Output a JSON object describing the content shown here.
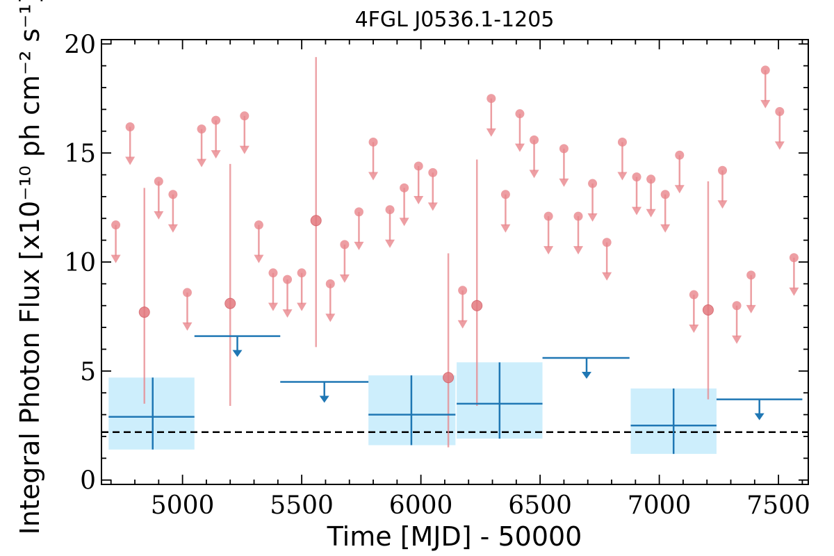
{
  "chart_data": {
    "type": "scatter",
    "title": "4FGL J0536.1-1205",
    "xlabel": "Time [MJD] - 50000",
    "ylabel": "Integral Photon Flux [x10⁻¹⁰ ph cm⁻² s⁻¹]",
    "xlim": [
      4660,
      7625
    ],
    "ylim": [
      -0.2,
      20.2
    ],
    "x_ticks": [
      5000,
      5500,
      6000,
      6500,
      7000,
      7500
    ],
    "y_ticks": [
      0,
      5,
      10,
      15,
      20
    ],
    "grid": false,
    "reference_line": {
      "y": 2.2,
      "style": "dashed",
      "color": "#000000"
    },
    "colors": {
      "monthly": "#e8868c",
      "yearly": "#1f77b4",
      "yearly_band": "#cdeefc"
    },
    "series": [
      {
        "bin": "monthly",
        "detections": [
          {
            "x": 4840,
            "y": 7.7,
            "y_low": 3.5,
            "y_high": 13.4
          },
          {
            "x": 5200,
            "y": 8.1,
            "y_low": 3.4,
            "y_high": 14.5
          },
          {
            "x": 5560,
            "y": 11.9,
            "y_low": 6.1,
            "y_high": 19.4
          },
          {
            "x": 6115,
            "y": 4.7,
            "y_low": 1.5,
            "y_high": 10.4
          },
          {
            "x": 6235,
            "y": 8.0,
            "y_low": 3.4,
            "y_high": 14.7
          },
          {
            "x": 7205,
            "y": 7.8,
            "y_low": 3.7,
            "y_high": 13.7
          }
        ],
        "upper_limits": [
          {
            "x": 4720,
            "y": 11.7
          },
          {
            "x": 4780,
            "y": 16.2
          },
          {
            "x": 4900,
            "y": 13.7
          },
          {
            "x": 4960,
            "y": 13.1
          },
          {
            "x": 5020,
            "y": 8.6
          },
          {
            "x": 5080,
            "y": 16.1
          },
          {
            "x": 5140,
            "y": 16.5
          },
          {
            "x": 5260,
            "y": 16.7
          },
          {
            "x": 5320,
            "y": 11.7
          },
          {
            "x": 5380,
            "y": 9.5
          },
          {
            "x": 5440,
            "y": 9.2
          },
          {
            "x": 5500,
            "y": 9.5
          },
          {
            "x": 5620,
            "y": 9.0
          },
          {
            "x": 5680,
            "y": 10.8
          },
          {
            "x": 5740,
            "y": 12.3
          },
          {
            "x": 5800,
            "y": 15.5
          },
          {
            "x": 5870,
            "y": 12.4
          },
          {
            "x": 5930,
            "y": 13.4
          },
          {
            "x": 5990,
            "y": 14.4
          },
          {
            "x": 6050,
            "y": 14.1
          },
          {
            "x": 6175,
            "y": 8.7
          },
          {
            "x": 6295,
            "y": 17.5
          },
          {
            "x": 6355,
            "y": 13.1
          },
          {
            "x": 6415,
            "y": 16.8
          },
          {
            "x": 6475,
            "y": 15.6
          },
          {
            "x": 6535,
            "y": 12.1
          },
          {
            "x": 6600,
            "y": 15.2
          },
          {
            "x": 6660,
            "y": 12.1
          },
          {
            "x": 6720,
            "y": 13.6
          },
          {
            "x": 6780,
            "y": 10.9
          },
          {
            "x": 6845,
            "y": 15.5
          },
          {
            "x": 6905,
            "y": 13.9
          },
          {
            "x": 6965,
            "y": 13.8
          },
          {
            "x": 7025,
            "y": 13.1
          },
          {
            "x": 7085,
            "y": 14.9
          },
          {
            "x": 7145,
            "y": 8.5
          },
          {
            "x": 7265,
            "y": 14.2
          },
          {
            "x": 7325,
            "y": 8.0
          },
          {
            "x": 7385,
            "y": 9.4
          },
          {
            "x": 7445,
            "y": 18.8
          },
          {
            "x": 7505,
            "y": 16.9
          },
          {
            "x": 7565,
            "y": 10.2
          }
        ]
      },
      {
        "bin": "yearly",
        "detections": [
          {
            "x": 4875,
            "x_low": 4690,
            "x_high": 5050,
            "y": 2.9,
            "y_low": 1.4,
            "y_high": 4.7
          },
          {
            "x": 5960,
            "x_low": 5780,
            "x_high": 6145,
            "y": 3.0,
            "y_low": 1.6,
            "y_high": 4.8
          },
          {
            "x": 6330,
            "x_low": 6150,
            "x_high": 6510,
            "y": 3.5,
            "y_low": 1.9,
            "y_high": 5.4
          },
          {
            "x": 7060,
            "x_low": 6880,
            "x_high": 7240,
            "y": 2.5,
            "y_low": 1.2,
            "y_high": 4.2
          }
        ],
        "upper_limits": [
          {
            "x": 5230,
            "x_low": 5050,
            "x_high": 5410,
            "y": 6.6
          },
          {
            "x": 5595,
            "x_low": 5410,
            "x_high": 5780,
            "y": 4.5
          },
          {
            "x": 6695,
            "x_low": 6510,
            "x_high": 6875,
            "y": 5.6
          },
          {
            "x": 7420,
            "x_low": 7240,
            "x_high": 7600,
            "y": 3.7
          }
        ]
      }
    ]
  }
}
